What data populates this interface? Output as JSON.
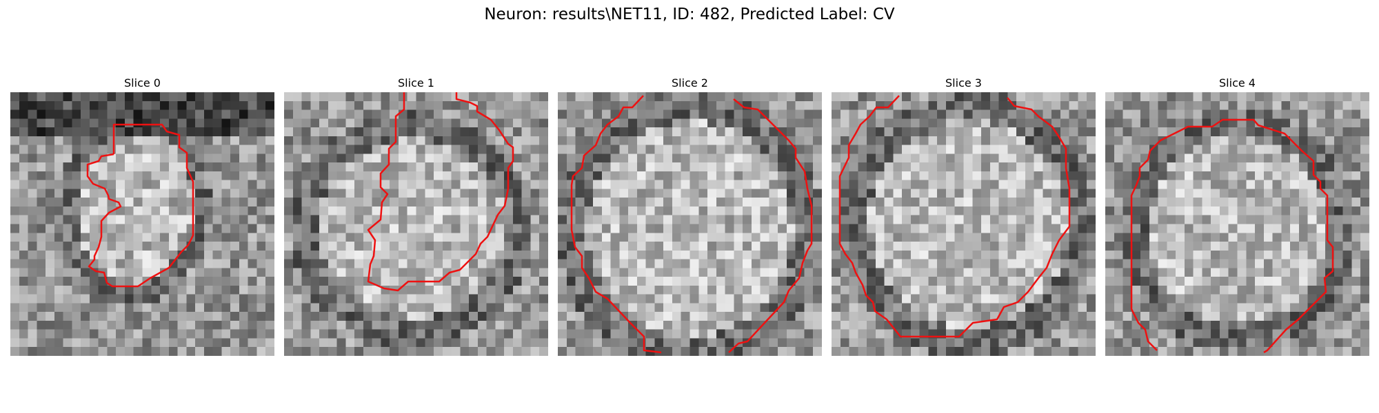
{
  "figure": {
    "title": "Neuron: results\\NET11, ID: 482, Predicted Label: CV"
  },
  "colors": {
    "contour": "#ee1111",
    "background": "#ffffff"
  },
  "panels": [
    {
      "title": "Slice 0"
    },
    {
      "title": "Slice 1"
    },
    {
      "title": "Slice 2"
    },
    {
      "title": "Slice 3"
    },
    {
      "title": "Slice 4"
    }
  ]
}
